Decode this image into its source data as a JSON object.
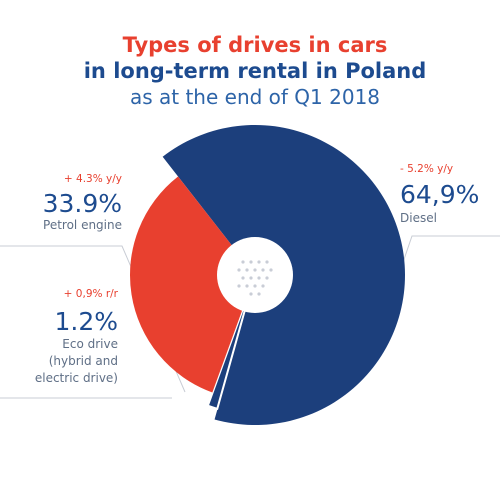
{
  "chart_data": {
    "type": "pie",
    "title": "Types of drives in cars",
    "subtitle": "in long-term rental in Poland",
    "date_note": "as at the end of Q1 2018",
    "categories": [
      "Diesel",
      "Eco drive",
      "Petrol engine"
    ],
    "values": [
      64.9,
      1.2,
      33.9
    ],
    "value_labels": [
      "64,9%",
      "1.2%",
      "33.9%"
    ],
    "changes": [
      "- 5.2% y/y",
      "+ 0,9% r/r",
      "+ 4.3% y/y"
    ],
    "eco_note_lines": [
      "(hybrid and",
      "electric drive)"
    ],
    "colors": [
      "#1c3f7c",
      "#1c3f7c",
      "#e8402f"
    ]
  }
}
